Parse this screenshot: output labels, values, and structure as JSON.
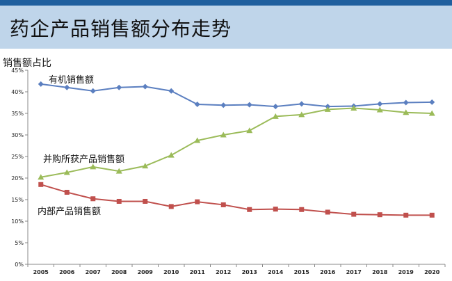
{
  "page": {
    "title": "药企产品销售额分布走势",
    "ylabel": "销售额占比"
  },
  "colors": {
    "band": "#bfd5ea",
    "band_top": "#1f5f9e",
    "series_1": "#5b7fc0",
    "series_2": "#9bbb59",
    "series_3": "#c0504d",
    "axis": "#888888"
  },
  "chart_data": {
    "type": "line",
    "title": "药企产品销售额分布走势",
    "ylabel": "销售额占比",
    "xlabel": "",
    "x": [
      "2005",
      "2006",
      "2007",
      "2008",
      "2009",
      "2010",
      "2011",
      "2012",
      "2013",
      "2014",
      "2015",
      "2016",
      "2017",
      "2018",
      "2019",
      "2020"
    ],
    "ylim": [
      0,
      45
    ],
    "yticks": [
      "0%",
      "5%",
      "10%",
      "15%",
      "20%",
      "25%",
      "30%",
      "35%",
      "40%",
      "45%"
    ],
    "grid": false,
    "series": [
      {
        "name": "有机销售额",
        "marker": "diamond",
        "color": "#5b7fc0",
        "values": [
          41.8,
          41.0,
          40.2,
          41.0,
          41.2,
          40.2,
          37.1,
          36.9,
          37.0,
          36.6,
          37.2,
          36.6,
          36.7,
          37.2,
          37.5,
          37.6
        ]
      },
      {
        "name": "并购所获产品销售额",
        "marker": "triangle",
        "color": "#9bbb59",
        "values": [
          20.2,
          21.3,
          22.6,
          21.6,
          22.8,
          25.3,
          28.7,
          30.0,
          31.0,
          34.3,
          34.7,
          35.9,
          36.2,
          35.8,
          35.2,
          35.0
        ]
      },
      {
        "name": "内部产品销售额",
        "marker": "square",
        "color": "#c0504d",
        "values": [
          18.5,
          16.7,
          15.2,
          14.6,
          14.6,
          13.4,
          14.5,
          13.8,
          12.7,
          12.8,
          12.7,
          12.1,
          11.6,
          11.5,
          11.4,
          11.4
        ]
      }
    ]
  }
}
